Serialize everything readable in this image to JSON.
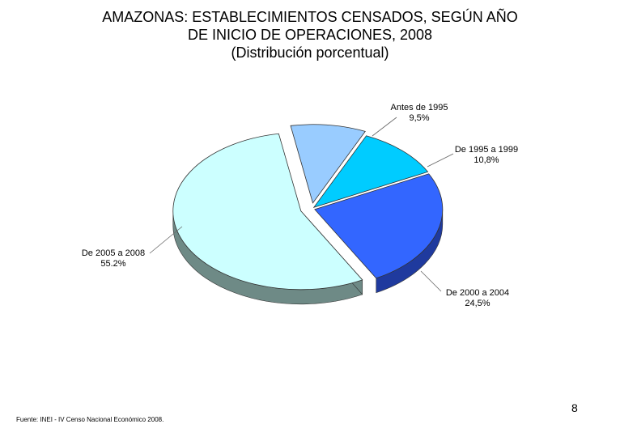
{
  "title_lines": [
    "AMAZONAS: ESTABLECIMIENTOS CENSADOS, SEGÚN AÑO",
    "DE INICIO DE OPERACIONES, 2008",
    "(Distribución porcentual)"
  ],
  "chart_data": {
    "type": "pie",
    "title": "AMAZONAS: ESTABLECIMIENTOS CENSADOS, SEGÚN AÑO DE INICIO DE OPERACIONES, 2008 (Distribución porcentual)",
    "style": "3d-exploded",
    "legend": "none",
    "slices": [
      {
        "label": "Antes de 1995",
        "value": 9.5,
        "value_label": "9,5%",
        "color": "#99ccff",
        "side_color": "#5b7aa6"
      },
      {
        "label": "De 1995 a 1999",
        "value": 10.8,
        "value_label": "10,8%",
        "color": "#00ccff",
        "side_color": "#0a7fa1"
      },
      {
        "label": "De 2000 a 2004",
        "value": 24.5,
        "value_label": "24,5%",
        "color": "#3366ff",
        "side_color": "#1f3a9e"
      },
      {
        "label": "De 2005 a 2008",
        "value": 55.2,
        "value_label": "55.2%",
        "color": "#ccffff",
        "side_color": "#6e8a86"
      }
    ]
  },
  "page_number": "8",
  "footer": "Fuente: INEI - IV Censo Nacional Económico 2008."
}
